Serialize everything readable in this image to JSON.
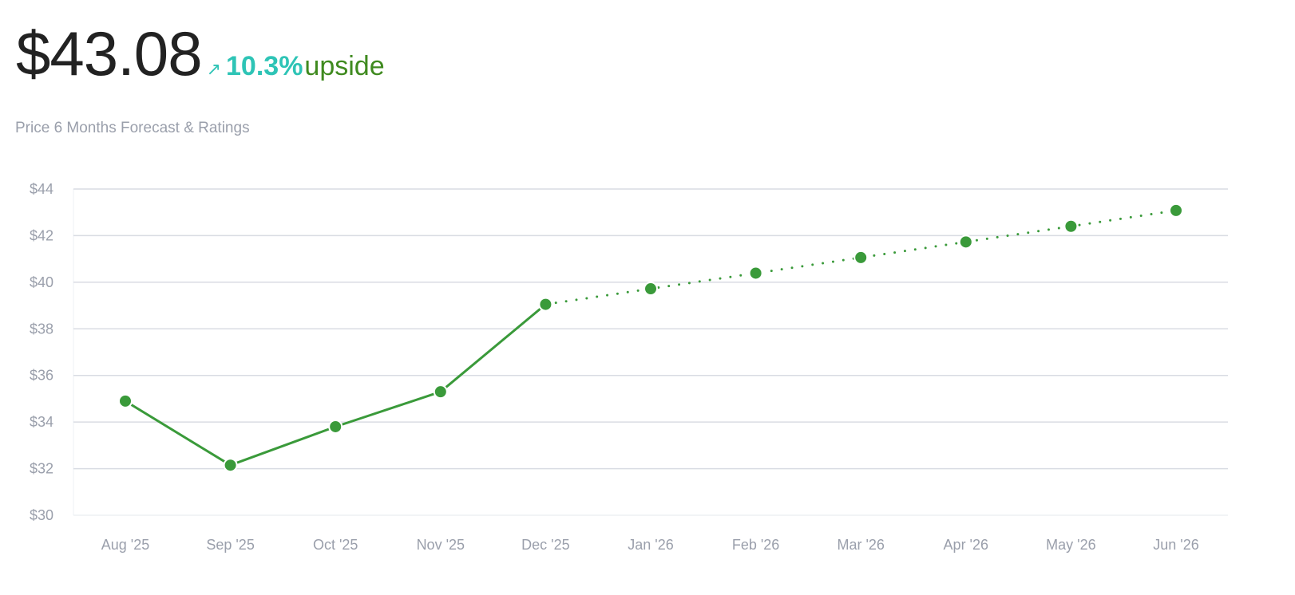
{
  "header": {
    "price": "$43.08",
    "upside_arrow": "↗",
    "upside_percent": "10.3%",
    "upside_label": "upside",
    "subtitle": "Price 6 Months Forecast & Ratings"
  },
  "colors": {
    "line": "#3a9a3a",
    "point": "#3a9a3a",
    "grid": "#d9dce3",
    "upside_percent": "#2ec4b6",
    "upside_label": "#3f8a1f"
  },
  "chart_data": {
    "type": "line",
    "title": "",
    "xlabel": "",
    "ylabel": "",
    "ylim": [
      30,
      44
    ],
    "yticks": [
      30,
      32,
      34,
      36,
      38,
      40,
      42,
      44
    ],
    "ytick_labels": [
      "$30",
      "$32",
      "$34",
      "$36",
      "$38",
      "$40",
      "$42",
      "$44"
    ],
    "categories": [
      "Aug '25",
      "Sep '25",
      "Oct '25",
      "Nov '25",
      "Dec '25",
      "Jan '26",
      "Feb '26",
      "Mar '26",
      "Apr '26",
      "May '26",
      "Jun '26"
    ],
    "grid": true,
    "legend": "none",
    "series": [
      {
        "style": "solid",
        "values": [
          34.9,
          32.15,
          33.8,
          35.3,
          39.05,
          null,
          null,
          null,
          null,
          null,
          null
        ]
      },
      {
        "style": "dotted",
        "values": [
          null,
          null,
          null,
          null,
          39.05,
          39.72,
          40.39,
          41.06,
          41.73,
          42.4,
          43.08
        ]
      }
    ]
  }
}
